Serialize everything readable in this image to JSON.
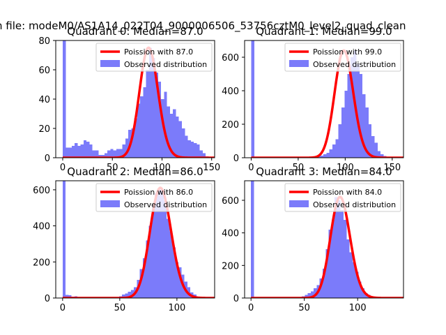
{
  "figure": {
    "suptitle": "n file: modeM0/AS1A14_022T04_9000006506_53756cztM0_level2_quad_clean"
  },
  "colors": {
    "hist": "#7b7bfa",
    "poisson": "#ff0000",
    "axis": "#000000",
    "background": "#ffffff"
  },
  "chart_data": [
    {
      "type": "bar",
      "title": "Quadrant 0: Median=87.0",
      "xlim": [
        -7,
        153
      ],
      "ylim": [
        0,
        80
      ],
      "xticks": [
        0,
        50,
        100,
        150
      ],
      "yticks": [
        0,
        20,
        40,
        60,
        80
      ],
      "legend": [
        "Poission with 87.0",
        "Observed distribution"
      ],
      "legend_position": "top-right",
      "median": 87,
      "bin_start": 0,
      "bin_width": 3,
      "counts": [
        80,
        7,
        7,
        8,
        10,
        8,
        9,
        12,
        11,
        9,
        5,
        5,
        2,
        2,
        3,
        5,
        6,
        5,
        6,
        6,
        9,
        13,
        19,
        20,
        27,
        37,
        42,
        48,
        60,
        75,
        68,
        58,
        52,
        40,
        45,
        35,
        30,
        33,
        28,
        25,
        20,
        15,
        12,
        11,
        10,
        9,
        5,
        3,
        1
      ],
      "poisson_scale": 1.0
    },
    {
      "type": "bar",
      "title": "Quadrant 1: Median=99.0",
      "xlim": [
        -7,
        162
      ],
      "ylim": [
        0,
        700
      ],
      "xticks": [
        0,
        50,
        100,
        150
      ],
      "yticks": [
        0,
        200,
        400,
        600
      ],
      "legend": [
        "Poission with 99.0",
        "Observed distribution"
      ],
      "legend_position": "top-right",
      "median": 99,
      "bin_start": 0,
      "bin_width": 3.2,
      "counts": [
        700,
        2,
        0,
        0,
        0,
        0,
        0,
        0,
        0,
        0,
        0,
        0,
        0,
        0,
        0,
        0,
        0,
        0,
        0,
        0,
        0,
        8,
        10,
        12,
        20,
        30,
        50,
        80,
        110,
        200,
        300,
        400,
        500,
        600,
        640,
        560,
        500,
        380,
        300,
        200,
        130,
        90,
        40,
        20,
        10,
        5,
        3,
        1
      ],
      "poisson_scale": 1.0
    },
    {
      "type": "bar",
      "title": "Quadrant 2: Median=86.0",
      "xlim": [
        -6,
        133
      ],
      "ylim": [
        0,
        650
      ],
      "xticks": [
        0,
        50,
        100
      ],
      "yticks": [
        0,
        200,
        400,
        600
      ],
      "legend": [
        "Poission with 86.0",
        "Observed distribution"
      ],
      "legend_position": "top-right",
      "median": 86,
      "bin_start": 0,
      "bin_width": 2.6,
      "counts": [
        650,
        18,
        15,
        8,
        10,
        5,
        5,
        3,
        3,
        2,
        2,
        2,
        0,
        0,
        0,
        0,
        0,
        0,
        0,
        10,
        20,
        25,
        35,
        45,
        60,
        100,
        160,
        220,
        320,
        400,
        520,
        580,
        610,
        600,
        540,
        440,
        370,
        280,
        200,
        170,
        130,
        90,
        60,
        30,
        20,
        8,
        3,
        1
      ],
      "poisson_scale": 1.0
    },
    {
      "type": "bar",
      "title": "Quadrant 3: Median=84.0",
      "xlim": [
        -6,
        143
      ],
      "ylim": [
        0,
        720
      ],
      "xticks": [
        0,
        50,
        100
      ],
      "yticks": [
        0,
        200,
        400,
        600
      ],
      "legend": [
        "Poission with 84.0",
        "Observed distribution"
      ],
      "legend_position": "top-right",
      "median": 84,
      "bin_start": 0,
      "bin_width": 2.8,
      "counts": [
        720,
        5,
        0,
        0,
        0,
        0,
        0,
        0,
        0,
        0,
        0,
        0,
        0,
        0,
        0,
        0,
        0,
        10,
        20,
        30,
        40,
        60,
        80,
        120,
        180,
        300,
        420,
        480,
        620,
        600,
        540,
        480,
        360,
        280,
        220,
        160,
        100,
        60,
        30,
        20,
        10,
        5,
        2,
        1
      ],
      "poisson_scale": 1.0
    }
  ]
}
